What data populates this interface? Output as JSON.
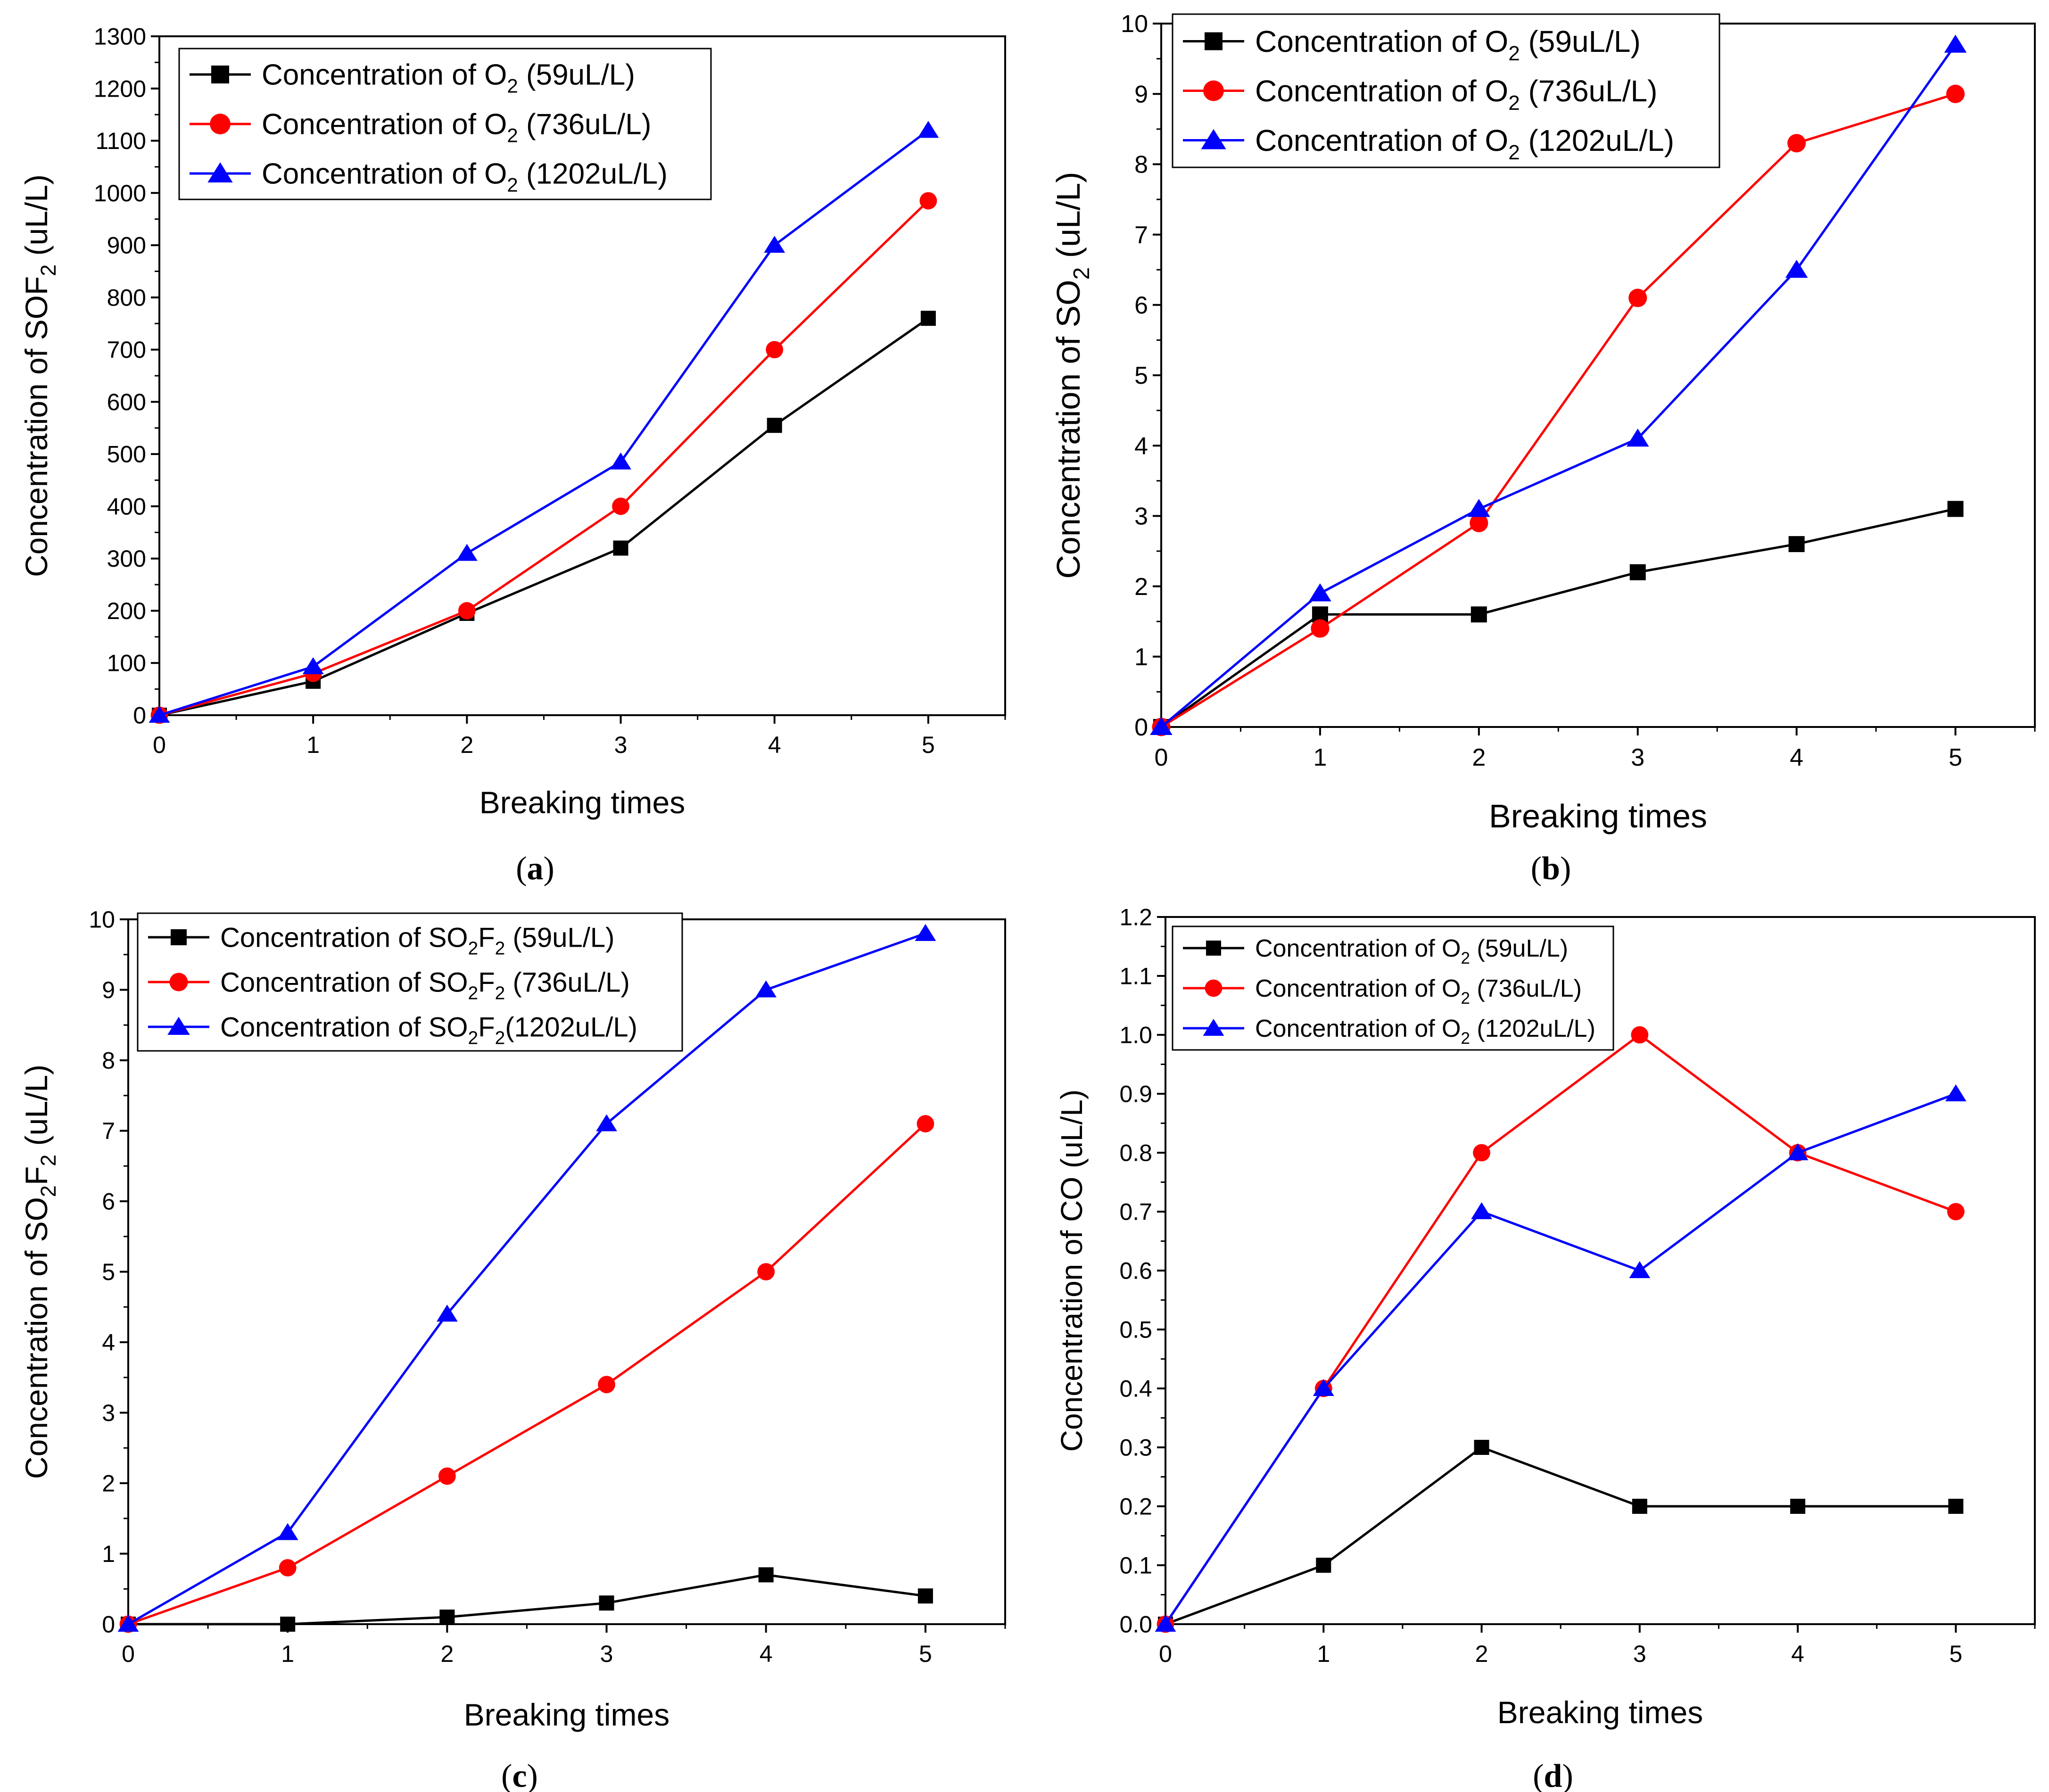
{
  "colors": {
    "black": "#000000",
    "red": "#ff0000",
    "blue": "#0000ff"
  },
  "chart_data": [
    {
      "type": "line",
      "panel_label": "a",
      "xlabel": "Breaking times",
      "ylabel": {
        "prefix": "Concentration of SOF",
        "sub": "2",
        "suffix": " (uL/L)"
      },
      "xlim": [
        0,
        5.5
      ],
      "ylim": [
        0,
        1300
      ],
      "xticks": [
        0,
        1,
        2,
        3,
        4,
        5
      ],
      "yticks": [
        0,
        100,
        200,
        300,
        400,
        500,
        600,
        700,
        800,
        900,
        1000,
        1100,
        1200,
        1300
      ],
      "ytick_labels": [
        "0",
        "100",
        "200",
        "300",
        "400",
        "500",
        "600",
        "700",
        "800",
        "900",
        "1000",
        "1100",
        "1200",
        "1300"
      ],
      "x": [
        0,
        1,
        2,
        3,
        4,
        5
      ],
      "legend_position": "top-left",
      "series": [
        {
          "name": "Concentration of O2 (59uL/L)",
          "label": {
            "prefix": "Concentration of O",
            "sub": "2",
            "suffix": " (59uL/L)"
          },
          "color": "#000000",
          "marker": "square",
          "values": [
            0,
            65,
            195,
            320,
            555,
            760
          ]
        },
        {
          "name": "Concentration of O2 (736uL/L)",
          "label": {
            "prefix": "Concentration of O",
            "sub": "2",
            "suffix": " (736uL/L)"
          },
          "color": "#ff0000",
          "marker": "circle",
          "values": [
            0,
            80,
            200,
            400,
            700,
            985
          ]
        },
        {
          "name": "Concentration of O2 (1202uL/L)",
          "label": {
            "prefix": "Concentration of O",
            "sub": "2",
            "suffix": " (1202uL/L)"
          },
          "color": "#0000ff",
          "marker": "triangle",
          "values": [
            0,
            93,
            310,
            485,
            900,
            1120
          ]
        }
      ]
    },
    {
      "type": "line",
      "panel_label": "b",
      "xlabel": "Breaking times",
      "ylabel": {
        "prefix": "Concentration of SO",
        "sub": "2",
        "suffix": " (uL/L)"
      },
      "xlim": [
        0,
        5.5
      ],
      "ylim": [
        0,
        10
      ],
      "xticks": [
        0,
        1,
        2,
        3,
        4,
        5
      ],
      "yticks": [
        0,
        1,
        2,
        3,
        4,
        5,
        6,
        7,
        8,
        9,
        10
      ],
      "ytick_labels": [
        "0",
        "1",
        "2",
        "3",
        "4",
        "5",
        "6",
        "7",
        "8",
        "9",
        "10"
      ],
      "x": [
        0,
        1,
        2,
        3,
        4,
        5
      ],
      "legend_position": "top-left",
      "series": [
        {
          "name": "Concentration of O2 (59uL/L)",
          "label": {
            "prefix": "Concentration of O",
            "sub": "2",
            "suffix": " (59uL/L)"
          },
          "color": "#000000",
          "marker": "square",
          "values": [
            0,
            1.6,
            1.6,
            2.2,
            2.6,
            3.1
          ]
        },
        {
          "name": "Concentration of O2 (736uL/L)",
          "label": {
            "prefix": "Concentration of O",
            "sub": "2",
            "suffix": " (736uL/L)"
          },
          "color": "#ff0000",
          "marker": "circle",
          "values": [
            0,
            1.4,
            2.9,
            6.1,
            8.3,
            9.0
          ]
        },
        {
          "name": "Concentration of O2 (1202uL/L)",
          "label": {
            "prefix": "Concentration of O",
            "sub": "2",
            "suffix": " (1202uL/L)"
          },
          "color": "#0000ff",
          "marker": "triangle",
          "values": [
            0,
            1.9,
            3.1,
            4.1,
            6.5,
            9.7
          ]
        }
      ]
    },
    {
      "type": "line",
      "panel_label": "c",
      "xlabel": "Breaking times",
      "ylabel": {
        "prefix": "Concentration of SO",
        "sub": "2",
        "mid": "F",
        "sub2": "2",
        "suffix": " (uL/L)"
      },
      "xlim": [
        0,
        5.5
      ],
      "ylim": [
        0,
        10
      ],
      "xticks": [
        0,
        1,
        2,
        3,
        4,
        5
      ],
      "yticks": [
        0,
        1,
        2,
        3,
        4,
        5,
        6,
        7,
        8,
        9,
        10
      ],
      "ytick_labels": [
        "0",
        "1",
        "2",
        "3",
        "4",
        "5",
        "6",
        "7",
        "8",
        "9",
        "10"
      ],
      "x": [
        0,
        1,
        2,
        3,
        4,
        5
      ],
      "legend_position": "top-left",
      "series": [
        {
          "name": "Concentration of SO2F2 (59uL/L)",
          "label": {
            "prefix": "Concentration of SO",
            "sub": "2",
            "mid": "F",
            "sub2": "2",
            "suffix": " (59uL/L)"
          },
          "color": "#000000",
          "marker": "square",
          "values": [
            0,
            0,
            0.1,
            0.3,
            0.7,
            0.4
          ]
        },
        {
          "name": "Concentration of SO2F2 (736uL/L)",
          "label": {
            "prefix": "Concentration of SO",
            "sub": "2",
            "mid": "F",
            "sub2": "2",
            "suffix": " (736uL/L)"
          },
          "color": "#ff0000",
          "marker": "circle",
          "values": [
            0,
            0.8,
            2.1,
            3.4,
            5.0,
            7.1
          ]
        },
        {
          "name": "Concentration of SO2F2 (1202uL/L)",
          "label": {
            "prefix": "Concentration of SO",
            "sub": "2",
            "mid": "F",
            "sub2": "2",
            "suffix": "(1202uL/L)"
          },
          "color": "#0000ff",
          "marker": "triangle",
          "values": [
            0,
            1.3,
            4.4,
            7.1,
            9.0,
            9.8
          ]
        }
      ]
    },
    {
      "type": "line",
      "panel_label": "d",
      "xlabel": "Breaking times",
      "ylabel": {
        "prefix": "Concentration of CO (uL/L)",
        "sub": "",
        "suffix": ""
      },
      "xlim": [
        0,
        5.5
      ],
      "ylim": [
        0,
        1.2
      ],
      "xticks": [
        0,
        1,
        2,
        3,
        4,
        5
      ],
      "yticks": [
        0,
        0.1,
        0.2,
        0.3,
        0.4,
        0.5,
        0.6,
        0.7,
        0.8,
        0.9,
        1.0,
        1.1,
        1.2
      ],
      "ytick_labels": [
        "0.0",
        "0.1",
        "0.2",
        "0.3",
        "0.4",
        "0.5",
        "0.6",
        "0.7",
        "0.8",
        "0.9",
        "1.0",
        "1.1",
        "1.2"
      ],
      "x": [
        0,
        1,
        2,
        3,
        4,
        5
      ],
      "legend_position": "top-left",
      "series": [
        {
          "name": "Concentration of O2 (59uL/L)",
          "label": {
            "prefix": "Concentration of O",
            "sub": "2",
            "suffix": " (59uL/L)"
          },
          "color": "#000000",
          "marker": "square",
          "values": [
            0,
            0.1,
            0.3,
            0.2,
            0.2,
            0.2
          ]
        },
        {
          "name": "Concentration of O2 (736uL/L)",
          "label": {
            "prefix": "Concentration of O",
            "sub": "2",
            "suffix": " (736uL/L)"
          },
          "color": "#ff0000",
          "marker": "circle",
          "values": [
            0,
            0.4,
            0.8,
            1.0,
            0.8,
            0.7
          ]
        },
        {
          "name": "Concentration of O2 (1202uL/L)",
          "label": {
            "prefix": "Concentration of O",
            "sub": "2",
            "suffix": " (1202uL/L)"
          },
          "color": "#0000ff",
          "marker": "triangle",
          "values": [
            0,
            0.4,
            0.7,
            0.6,
            0.8,
            0.9
          ]
        }
      ]
    }
  ]
}
